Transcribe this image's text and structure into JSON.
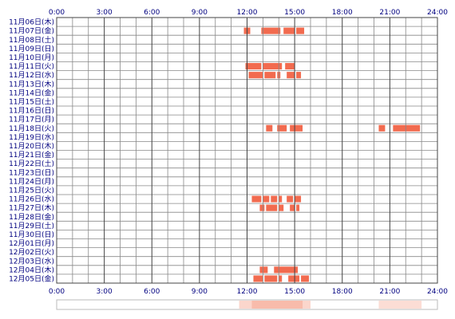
{
  "chart_data": {
    "type": "heatmap",
    "title": "",
    "xlabel": "",
    "ylabel": "",
    "xlim": [
      0,
      24
    ],
    "x_tick_labels": [
      "0:00",
      "3:00",
      "6:00",
      "9:00",
      "12:00",
      "15:00",
      "18:00",
      "21:00",
      "24:00"
    ],
    "x_tick_positions": [
      0,
      3,
      6,
      9,
      12,
      15,
      18,
      21,
      24
    ],
    "grid": true,
    "bar_color": "#f26b4f",
    "grid_color": "#888888",
    "rows": [
      {
        "label": "11月06日(木)",
        "segments": []
      },
      {
        "label": "11月07日(金)",
        "segments": [
          [
            11.8,
            12.2
          ],
          [
            12.9,
            14.1
          ],
          [
            14.3,
            15.0
          ],
          [
            15.1,
            15.6
          ]
        ]
      },
      {
        "label": "11月08日(土)",
        "segments": []
      },
      {
        "label": "11月09日(日)",
        "segments": []
      },
      {
        "label": "11月10日(月)",
        "segments": []
      },
      {
        "label": "11月11日(火)",
        "segments": [
          [
            11.9,
            12.9
          ],
          [
            13.0,
            14.2
          ],
          [
            14.4,
            15.0
          ]
        ]
      },
      {
        "label": "11月12日(水)",
        "segments": [
          [
            12.1,
            13.0
          ],
          [
            13.1,
            13.8
          ],
          [
            13.9,
            14.1
          ],
          [
            14.5,
            15.0
          ],
          [
            15.1,
            15.4
          ]
        ]
      },
      {
        "label": "11月13日(木)",
        "segments": []
      },
      {
        "label": "11月14日(金)",
        "segments": []
      },
      {
        "label": "11月15日(土)",
        "segments": []
      },
      {
        "label": "11月16日(日)",
        "segments": []
      },
      {
        "label": "11月17日(月)",
        "segments": []
      },
      {
        "label": "11月18日(火)",
        "segments": [
          [
            13.2,
            13.6
          ],
          [
            13.9,
            14.5
          ],
          [
            14.7,
            15.5
          ],
          [
            20.3,
            20.7
          ],
          [
            21.2,
            22.9
          ]
        ]
      },
      {
        "label": "11月19日(水)",
        "segments": []
      },
      {
        "label": "11月20日(木)",
        "segments": []
      },
      {
        "label": "11月21日(金)",
        "segments": []
      },
      {
        "label": "11月22日(土)",
        "segments": []
      },
      {
        "label": "11月23日(日)",
        "segments": []
      },
      {
        "label": "11月24日(月)",
        "segments": []
      },
      {
        "label": "11月25日(火)",
        "segments": []
      },
      {
        "label": "11月26日(水)",
        "segments": [
          [
            12.3,
            12.9
          ],
          [
            13.0,
            13.4
          ],
          [
            13.5,
            13.9
          ],
          [
            14.0,
            14.2
          ],
          [
            14.5,
            14.9
          ],
          [
            15.0,
            15.4
          ]
        ]
      },
      {
        "label": "11月27日(木)",
        "segments": [
          [
            12.8,
            13.1
          ],
          [
            13.2,
            13.9
          ],
          [
            14.0,
            14.3
          ],
          [
            14.7,
            15.0
          ],
          [
            15.1,
            15.3
          ]
        ]
      },
      {
        "label": "11月28日(金)",
        "segments": []
      },
      {
        "label": "11月29日(土)",
        "segments": []
      },
      {
        "label": "11月30日(日)",
        "segments": []
      },
      {
        "label": "12月01日(月)",
        "segments": []
      },
      {
        "label": "12月02日(火)",
        "segments": []
      },
      {
        "label": "12月03日(水)",
        "segments": []
      },
      {
        "label": "12月04日(木)",
        "segments": [
          [
            12.8,
            13.3
          ],
          [
            13.7,
            15.2
          ]
        ]
      },
      {
        "label": "12月05日(金)",
        "segments": [
          [
            12.4,
            13.0
          ],
          [
            13.1,
            13.9
          ],
          [
            14.0,
            14.2
          ],
          [
            14.6,
            15.3
          ],
          [
            15.4,
            15.9
          ]
        ]
      }
    ],
    "summary_strip": {
      "base_color": "#fde8e1",
      "segments": [
        [
          11.5,
          16.0,
          0.55
        ],
        [
          12.3,
          15.5,
          0.8
        ],
        [
          20.3,
          23.0,
          0.45
        ]
      ]
    }
  }
}
